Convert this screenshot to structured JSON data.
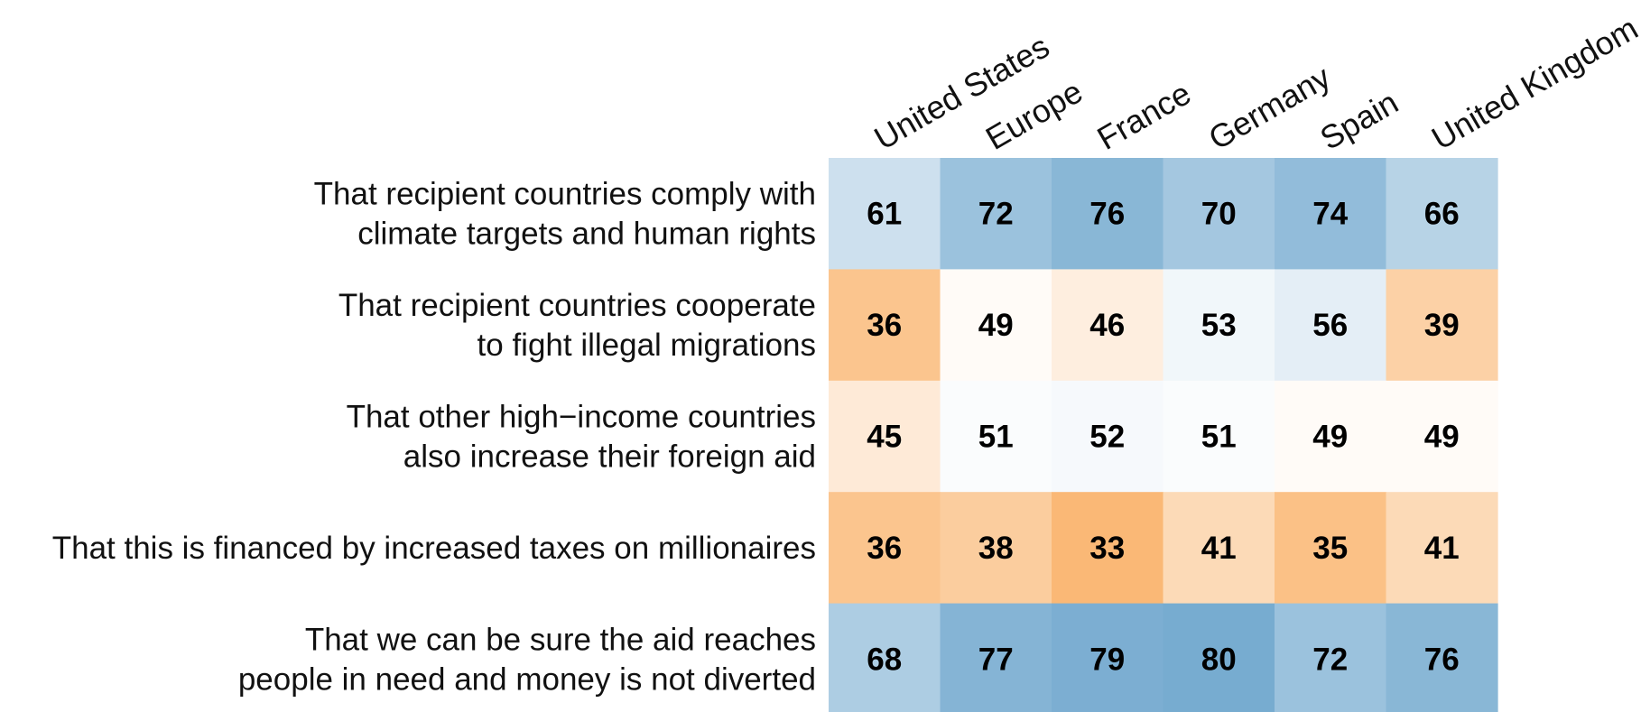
{
  "chart_data": {
    "type": "heatmap",
    "title": "",
    "xlabel": "",
    "ylabel": "",
    "columns": [
      "United States",
      "Europe",
      "France",
      "Germany",
      "Spain",
      "United Kingdom"
    ],
    "rows": [
      {
        "label_lines": [
          "That recipient countries comply with",
          "climate targets and human rights"
        ],
        "values": [
          61,
          72,
          76,
          70,
          74,
          66
        ]
      },
      {
        "label_lines": [
          "That recipient countries cooperate",
          "to fight illegal migrations"
        ],
        "values": [
          36,
          49,
          46,
          53,
          56,
          39
        ]
      },
      {
        "label_lines": [
          "That other high−income countries",
          "also increase their foreign aid"
        ],
        "values": [
          45,
          51,
          52,
          51,
          49,
          49
        ]
      },
      {
        "label_lines": [
          "That this is financed by increased taxes on millionaires"
        ],
        "values": [
          36,
          38,
          33,
          41,
          35,
          41
        ]
      },
      {
        "label_lines": [
          "That we can be sure the aid reaches",
          "people in need and money is not diverted"
        ],
        "values": [
          68,
          77,
          79,
          80,
          72,
          76
        ]
      }
    ],
    "color_scale": {
      "low_color": "#f9ac5e",
      "mid_value": 50,
      "mid_color": "#ffffff",
      "high_color": "#6ea6cd",
      "min_value": 30,
      "max_value": 82
    },
    "legend": "none"
  }
}
